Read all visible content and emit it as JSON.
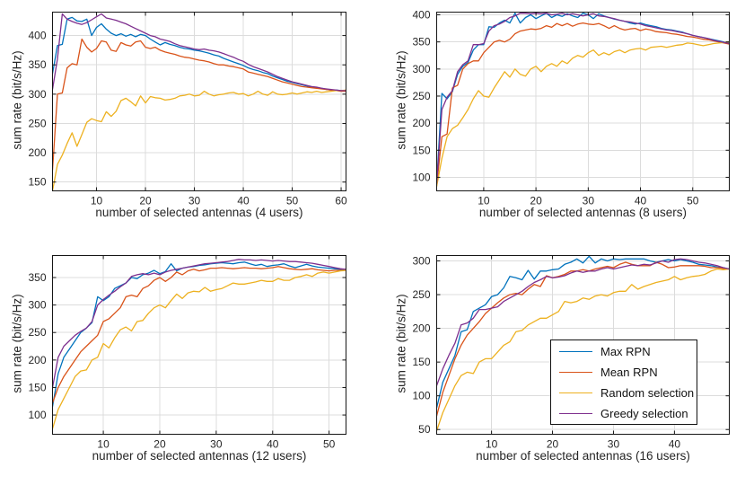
{
  "figure": {
    "background": "#ffffff",
    "axis_color": "#161616",
    "grid_color": "#dcdcdc",
    "tick_label_color": "#262626",
    "legend": {
      "items": [
        "Max RPN",
        "Mean RPN",
        "Random selection",
        "Greedy selection"
      ],
      "border_color": "#111111",
      "background": "#ffffff",
      "location": "bottom-right-subplot"
    },
    "palette": {
      "max_rpn": "#0072BD",
      "mean_rpn": "#D95319",
      "random_selection": "#EDB120",
      "greedy_selection": "#7E2F8E"
    }
  },
  "chart_data": [
    {
      "type": "line",
      "users": 4,
      "title": "",
      "xlabel": "number of selected antennas (4 users)",
      "ylabel": "sum rate (bit/s/Hz)",
      "x_start": 1,
      "x_step": 1,
      "xlim": [
        1,
        61
      ],
      "ylim": [
        135,
        440
      ],
      "xticks": [
        10,
        20,
        30,
        40,
        50,
        60
      ],
      "yticks": [
        150,
        200,
        250,
        300,
        350,
        400
      ],
      "grid": true,
      "legend_visible": false,
      "series": [
        {
          "name": "Max RPN",
          "color": "#0072BD",
          "values": [
            335,
            383,
            385,
            428,
            431,
            425,
            424,
            428,
            400,
            414,
            420,
            411,
            404,
            400,
            403,
            399,
            402,
            398,
            402,
            400,
            394,
            389,
            384,
            388,
            385,
            383,
            380,
            378,
            377,
            375,
            374,
            372,
            370,
            367,
            365,
            361,
            358,
            355,
            352,
            349,
            345,
            342,
            340,
            337,
            335,
            331,
            328,
            325,
            322,
            320,
            318,
            316,
            314,
            312,
            311,
            310,
            308,
            307,
            307,
            306,
            306
          ]
        },
        {
          "name": "Mean RPN",
          "color": "#D95319",
          "values": [
            170,
            300,
            302,
            345,
            352,
            350,
            394,
            380,
            372,
            378,
            391,
            389,
            375,
            373,
            388,
            384,
            382,
            389,
            391,
            380,
            378,
            380,
            375,
            372,
            370,
            368,
            365,
            363,
            362,
            360,
            358,
            357,
            355,
            352,
            350,
            350,
            348,
            347,
            345,
            343,
            338,
            336,
            334,
            332,
            330,
            327,
            324,
            321,
            319,
            317,
            315,
            313,
            312,
            311,
            310,
            309,
            308,
            307,
            306,
            305,
            305
          ]
        },
        {
          "name": "Random selection",
          "color": "#EDB120",
          "values": [
            135,
            180,
            196,
            216,
            234,
            211,
            231,
            252,
            258,
            255,
            253,
            270,
            262,
            271,
            289,
            293,
            287,
            280,
            297,
            285,
            296,
            294,
            293,
            290,
            291,
            293,
            297,
            298,
            300,
            297,
            298,
            305,
            300,
            297,
            299,
            300,
            302,
            303,
            300,
            301,
            297,
            300,
            305,
            300,
            298,
            304,
            300,
            299,
            300,
            302,
            300,
            302,
            304,
            303,
            305,
            303,
            304,
            305,
            306,
            306,
            307
          ]
        },
        {
          "name": "Greedy selection",
          "color": "#7E2F8E",
          "values": [
            308,
            360,
            437,
            428,
            424,
            421,
            419,
            422,
            427,
            432,
            437,
            430,
            428,
            426,
            423,
            420,
            416,
            412,
            408,
            404,
            400,
            398,
            394,
            392,
            390,
            386,
            383,
            381,
            379,
            377,
            376,
            377,
            375,
            374,
            372,
            369,
            366,
            363,
            359,
            356,
            351,
            347,
            344,
            341,
            338,
            334,
            330,
            327,
            324,
            321,
            319,
            317,
            315,
            313,
            312,
            310,
            309,
            308,
            307,
            306,
            306
          ]
        }
      ]
    },
    {
      "type": "line",
      "users": 8,
      "title": "",
      "xlabel": "number of selected antennas (8 users)",
      "ylabel": "sum rate (bit/s/Hz)",
      "x_start": 1,
      "x_step": 1,
      "xlim": [
        1,
        57
      ],
      "ylim": [
        75,
        405
      ],
      "xticks": [
        10,
        20,
        30,
        40,
        50
      ],
      "yticks": [
        100,
        150,
        200,
        250,
        300,
        350,
        400
      ],
      "grid": true,
      "legend_visible": false,
      "series": [
        {
          "name": "Max RPN",
          "color": "#0072BD",
          "values": [
            88,
            255,
            245,
            258,
            290,
            305,
            312,
            335,
            345,
            345,
            378,
            377,
            385,
            390,
            385,
            403,
            385,
            395,
            400,
            393,
            398,
            403,
            395,
            400,
            397,
            402,
            398,
            395,
            403,
            400,
            393,
            402,
            398,
            395,
            392,
            390,
            388,
            385,
            383,
            385,
            382,
            380,
            378,
            375,
            373,
            372,
            370,
            368,
            365,
            362,
            360,
            358,
            356,
            354,
            352,
            350,
            347
          ]
        },
        {
          "name": "Mean RPN",
          "color": "#D95319",
          "values": [
            85,
            175,
            180,
            265,
            270,
            300,
            310,
            315,
            315,
            330,
            340,
            350,
            353,
            350,
            355,
            365,
            370,
            372,
            374,
            373,
            375,
            380,
            377,
            384,
            380,
            384,
            379,
            383,
            385,
            383,
            382,
            384,
            380,
            375,
            380,
            375,
            372,
            374,
            375,
            371,
            374,
            372,
            369,
            368,
            367,
            365,
            364,
            362,
            360,
            359,
            357,
            355,
            354,
            352,
            350,
            348,
            346
          ]
        },
        {
          "name": "Random selection",
          "color": "#EDB120",
          "values": [
            83,
            135,
            175,
            190,
            196,
            210,
            225,
            245,
            260,
            250,
            248,
            265,
            280,
            295,
            285,
            300,
            290,
            287,
            300,
            305,
            295,
            305,
            310,
            305,
            315,
            310,
            320,
            325,
            322,
            330,
            335,
            325,
            330,
            326,
            332,
            335,
            330,
            335,
            337,
            338,
            335,
            340,
            341,
            342,
            340,
            342,
            344,
            345,
            348,
            347,
            345,
            343,
            345,
            347,
            348,
            349,
            350
          ]
        },
        {
          "name": "Greedy selection",
          "color": "#7E2F8E",
          "values": [
            88,
            225,
            248,
            260,
            295,
            308,
            315,
            345,
            345,
            347,
            370,
            380,
            383,
            388,
            395,
            398,
            403,
            403,
            402,
            403,
            402,
            403,
            400,
            401,
            403,
            400,
            402,
            400,
            398,
            400,
            402,
            398,
            397,
            395,
            393,
            390,
            388,
            387,
            385,
            383,
            380,
            378,
            376,
            374,
            372,
            371,
            369,
            367,
            365,
            362,
            360,
            358,
            356,
            353,
            351,
            349,
            347
          ]
        }
      ]
    },
    {
      "type": "line",
      "users": 12,
      "title": "",
      "xlabel": "number of selected antennas (12 users)",
      "ylabel": "sum rate (bit/s/Hz)",
      "x_start": 1,
      "x_step": 1,
      "xlim": [
        1,
        53
      ],
      "ylim": [
        65,
        390
      ],
      "xticks": [
        10,
        20,
        30,
        40,
        50
      ],
      "yticks": [
        100,
        150,
        200,
        250,
        300,
        350
      ],
      "grid": true,
      "legend_visible": false,
      "series": [
        {
          "name": "Max RPN",
          "color": "#0072BD",
          "values": [
            115,
            175,
            205,
            220,
            235,
            250,
            258,
            268,
            315,
            308,
            315,
            330,
            335,
            340,
            350,
            348,
            355,
            358,
            363,
            357,
            361,
            375,
            362,
            367,
            369,
            370,
            372,
            373,
            375,
            376,
            377,
            376,
            375,
            377,
            378,
            375,
            372,
            374,
            370,
            372,
            373,
            375,
            371,
            368,
            371,
            374,
            371,
            369,
            368,
            367,
            366,
            365,
            365
          ]
        },
        {
          "name": "Mean RPN",
          "color": "#D95319",
          "values": [
            122,
            150,
            170,
            185,
            200,
            215,
            225,
            235,
            245,
            270,
            275,
            285,
            295,
            315,
            318,
            315,
            330,
            335,
            345,
            350,
            343,
            350,
            360,
            355,
            362,
            365,
            362,
            364,
            367,
            367,
            368,
            367,
            366,
            367,
            368,
            367,
            367,
            366,
            367,
            368,
            370,
            368,
            366,
            365,
            364,
            365,
            366,
            364,
            363,
            362,
            363,
            363,
            363
          ]
        },
        {
          "name": "Random selection",
          "color": "#EDB120",
          "values": [
            75,
            110,
            130,
            150,
            170,
            180,
            182,
            200,
            205,
            230,
            222,
            240,
            255,
            260,
            253,
            270,
            272,
            285,
            295,
            300,
            295,
            308,
            320,
            312,
            322,
            325,
            324,
            332,
            325,
            328,
            330,
            335,
            340,
            338,
            338,
            340,
            342,
            345,
            343,
            343,
            348,
            345,
            345,
            350,
            352,
            355,
            352,
            358,
            360,
            358,
            360,
            362,
            363
          ]
        },
        {
          "name": "Greedy selection",
          "color": "#7E2F8E",
          "values": [
            150,
            205,
            225,
            235,
            245,
            252,
            258,
            270,
            300,
            310,
            318,
            325,
            333,
            340,
            352,
            355,
            357,
            355,
            358,
            355,
            360,
            363,
            365,
            367,
            369,
            371,
            373,
            375,
            376,
            377,
            378,
            379,
            381,
            383,
            382,
            382,
            381,
            382,
            381,
            380,
            381,
            380,
            379,
            379,
            378,
            377,
            376,
            374,
            372,
            370,
            368,
            366,
            365
          ]
        }
      ]
    },
    {
      "type": "line",
      "users": 16,
      "title": "",
      "xlabel": "number of selected antennas (16 users)",
      "ylabel": "sum rate (bit/s/Hz)",
      "x_start": 1,
      "x_step": 1,
      "xlim": [
        1,
        49
      ],
      "ylim": [
        43,
        308
      ],
      "xticks": [
        10,
        20,
        30,
        40
      ],
      "yticks": [
        50,
        100,
        150,
        200,
        250,
        300
      ],
      "grid": true,
      "legend_visible": true,
      "series": [
        {
          "name": "Max RPN",
          "color": "#0072BD",
          "values": [
            82,
            120,
            140,
            160,
            195,
            198,
            225,
            230,
            235,
            247,
            250,
            260,
            277,
            275,
            272,
            286,
            273,
            285,
            285,
            287,
            288,
            295,
            298,
            303,
            297,
            307,
            297,
            303,
            300,
            303,
            302,
            303,
            303,
            303,
            303,
            300,
            298,
            300,
            302,
            300,
            302,
            300,
            298,
            295,
            294,
            293,
            291,
            290,
            288
          ]
        },
        {
          "name": "Mean RPN",
          "color": "#D95319",
          "values": [
            70,
            105,
            130,
            155,
            175,
            190,
            200,
            210,
            222,
            230,
            238,
            245,
            250,
            252,
            250,
            258,
            265,
            262,
            278,
            275,
            277,
            280,
            285,
            285,
            287,
            285,
            288,
            290,
            292,
            290,
            295,
            298,
            295,
            293,
            293,
            293,
            298,
            295,
            290,
            291,
            293,
            293,
            293,
            293,
            292,
            290,
            290,
            289,
            288
          ]
        },
        {
          "name": "Random selection",
          "color": "#EDB120",
          "values": [
            48,
            75,
            95,
            115,
            130,
            135,
            133,
            150,
            155,
            155,
            165,
            175,
            180,
            195,
            197,
            205,
            210,
            215,
            215,
            220,
            225,
            240,
            238,
            240,
            245,
            243,
            248,
            250,
            248,
            253,
            255,
            255,
            265,
            258,
            262,
            265,
            268,
            270,
            272,
            277,
            272,
            275,
            277,
            278,
            280,
            285,
            288,
            287,
            288
          ]
        },
        {
          "name": "Greedy selection",
          "color": "#7E2F8E",
          "values": [
            115,
            140,
            160,
            178,
            205,
            208,
            215,
            228,
            228,
            230,
            232,
            240,
            245,
            250,
            255,
            262,
            268,
            272,
            277,
            275,
            276,
            278,
            282,
            285,
            283,
            285,
            285,
            288,
            290,
            288,
            290,
            292,
            294,
            293,
            295,
            294,
            297,
            300,
            298,
            302,
            303,
            302,
            300,
            298,
            297,
            295,
            293,
            290,
            288
          ]
        }
      ]
    }
  ]
}
